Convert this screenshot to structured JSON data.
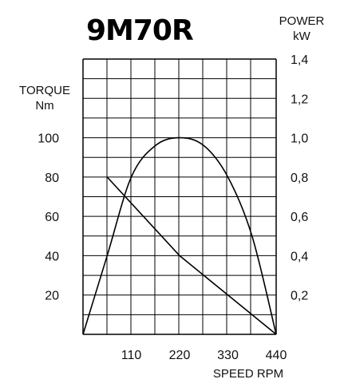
{
  "chart_data": {
    "type": "line",
    "title": "9M70R",
    "xlabel": "SPEED RPM",
    "ylabel_left": [
      "TORQUE",
      "Nm"
    ],
    "ylabel_right": [
      "POWER",
      "kW"
    ],
    "x_ticks": [
      "110",
      "220",
      "330",
      "440"
    ],
    "xlim": [
      0,
      440
    ],
    "ylim_left": [
      0,
      140
    ],
    "ylim_right": [
      0,
      1.4
    ],
    "left_ticks": [
      {
        "value": 20,
        "label": "20"
      },
      {
        "value": 40,
        "label": "40"
      },
      {
        "value": 60,
        "label": "60"
      },
      {
        "value": 80,
        "label": "80"
      },
      {
        "value": 100,
        "label": "100"
      }
    ],
    "right_ticks": [
      {
        "value": 0.2,
        "label": "0,2"
      },
      {
        "value": 0.4,
        "label": "0,4"
      },
      {
        "value": 0.6,
        "label": "0,6"
      },
      {
        "value": 0.8,
        "label": "0,8"
      },
      {
        "value": 1.0,
        "label": "1,0"
      },
      {
        "value": 1.2,
        "label": "1,2"
      },
      {
        "value": 1.4,
        "label": "1,4"
      }
    ],
    "grid": true,
    "series": [
      {
        "axis": "left",
        "x": [
          55,
          220,
          440
        ],
        "y": [
          80,
          40,
          0
        ]
      },
      {
        "axis": "right",
        "x": [
          0,
          55,
          110,
          165,
          220,
          275,
          330,
          385,
          440
        ],
        "y": [
          0,
          0.4,
          0.8,
          0.96,
          1.0,
          0.96,
          0.8,
          0.5,
          0
        ]
      }
    ]
  }
}
